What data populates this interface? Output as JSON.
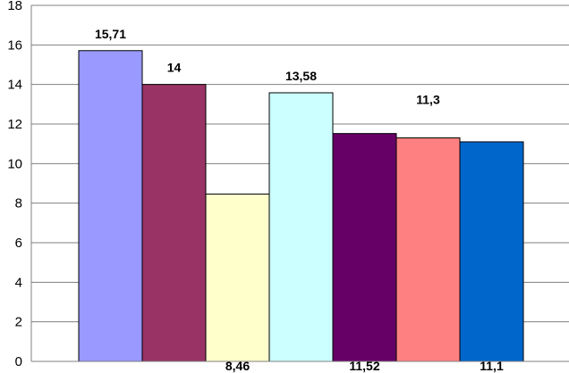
{
  "chart_data": {
    "type": "bar",
    "title": "",
    "xlabel": "",
    "ylabel": "",
    "ylim": [
      0,
      18
    ],
    "yticks": [
      "0",
      "2",
      "4",
      "6",
      "8",
      "10",
      "12",
      "14",
      "16",
      "18"
    ],
    "grid": true,
    "legend": "none",
    "bars": [
      {
        "value": 15.71,
        "label": "15,71",
        "color": "#9999FF",
        "label_pos": "above"
      },
      {
        "value": 14.0,
        "label": "14",
        "color": "#993366",
        "label_pos": "above"
      },
      {
        "value": 8.46,
        "label": "8,46",
        "color": "#FFFFCC",
        "label_pos": "below-axis"
      },
      {
        "value": 13.58,
        "label": "13,58",
        "color": "#CCFFFF",
        "label_pos": "above"
      },
      {
        "value": 11.52,
        "label": "11,52",
        "color": "#660066",
        "label_pos": "below-axis"
      },
      {
        "value": 11.3,
        "label": "11,3",
        "color": "#FF8080",
        "label_pos": "high"
      },
      {
        "value": 11.1,
        "label": "11,1",
        "color": "#0066CC",
        "label_pos": "below-axis"
      }
    ]
  }
}
